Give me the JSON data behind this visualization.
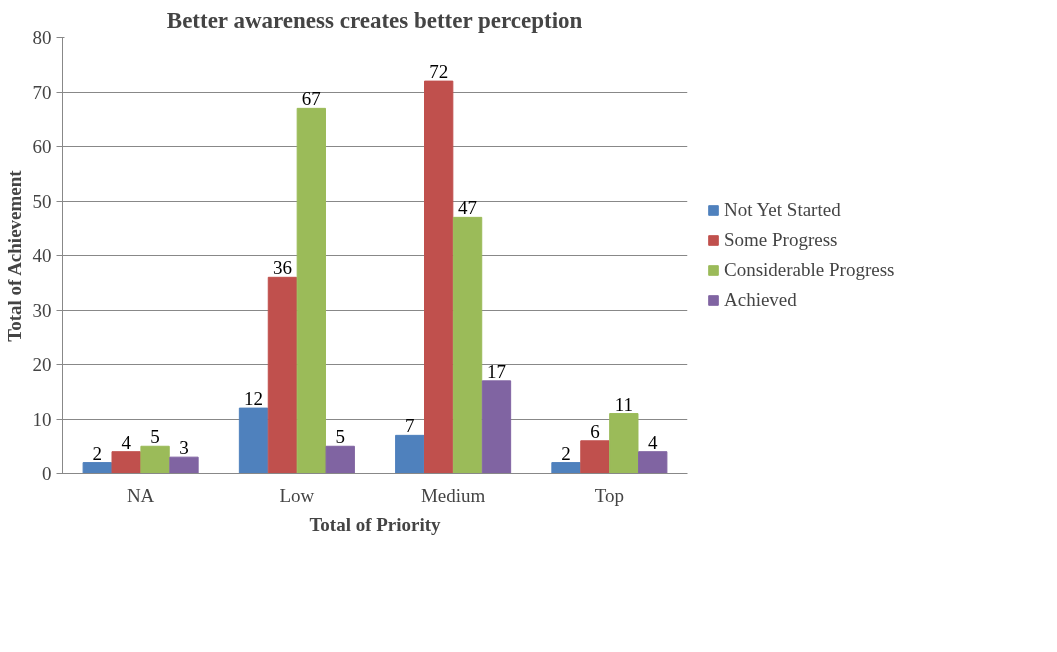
{
  "chart_data": {
    "type": "bar",
    "title": "Better awareness creates better perception",
    "xlabel": "Total of Priority",
    "ylabel": "Total of Achievement",
    "categories": [
      "NA",
      "Low",
      "Medium",
      "Top"
    ],
    "series": [
      {
        "name": "Not Yet Started",
        "color": "#4f81bd",
        "values": [
          2,
          12,
          7,
          2
        ]
      },
      {
        "name": "Some Progress",
        "color": "#c0504d",
        "values": [
          4,
          36,
          72,
          6
        ]
      },
      {
        "name": "Considerable Progress",
        "color": "#9bbb59",
        "values": [
          5,
          67,
          47,
          11
        ]
      },
      {
        "name": "Achieved",
        "color": "#8064a2",
        "values": [
          3,
          5,
          17,
          4
        ]
      }
    ],
    "ylim": [
      0,
      80
    ],
    "yticks": [
      0,
      10,
      20,
      30,
      40,
      50,
      60,
      70,
      80
    ],
    "grid": "y",
    "legend": "right",
    "data_labels": true
  }
}
